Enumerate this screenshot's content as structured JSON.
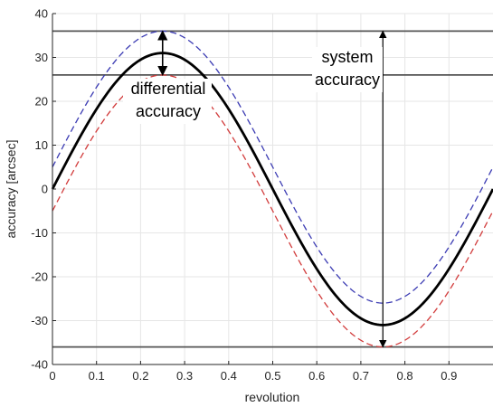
{
  "chart_data": {
    "type": "line",
    "title": "",
    "xlabel": "revolution",
    "ylabel": "accuracy [arcsec]",
    "xlim": [
      0,
      1
    ],
    "ylim": [
      -40,
      40
    ],
    "grid": true,
    "x_ticks": [
      0,
      0.1,
      0.2,
      0.3,
      0.4,
      0.5,
      0.6,
      0.7,
      0.8,
      0.9
    ],
    "x_tick_labels": [
      "0",
      "0.1",
      "0.2",
      "0.3",
      "0.4",
      "0.5",
      "0.6",
      "0.7",
      "0.8",
      "0.9"
    ],
    "y_ticks": [
      40,
      30,
      20,
      10,
      0,
      -10,
      -20,
      -30,
      -40
    ],
    "y_tick_labels": [
      "40",
      "30",
      "20",
      "10",
      "0",
      "-10",
      "-20",
      "-30",
      "-40"
    ],
    "series": [
      {
        "style": "solid",
        "color": "#000000",
        "amplitude": 31,
        "offset": 0
      },
      {
        "style": "dashed",
        "color": "#3b3bb3",
        "amplitude": 31,
        "offset": 5
      },
      {
        "style": "dashed",
        "color": "#d23c3c",
        "amplitude": 31,
        "offset": -5
      }
    ],
    "reference_lines": [
      36,
      26,
      -36
    ],
    "annotations": {
      "differential": {
        "line1": "differential",
        "line2": "accuracy",
        "x": 0.25,
        "from": 36,
        "to": 26
      },
      "system": {
        "line1": "system",
        "line2": "accuracy",
        "x": 0.75,
        "from": 36,
        "to": -36
      }
    }
  },
  "colors": {
    "grid": "#e6e6e6",
    "axis": "#262626",
    "reference": "#555555",
    "plot_bg": "#ffffff"
  }
}
